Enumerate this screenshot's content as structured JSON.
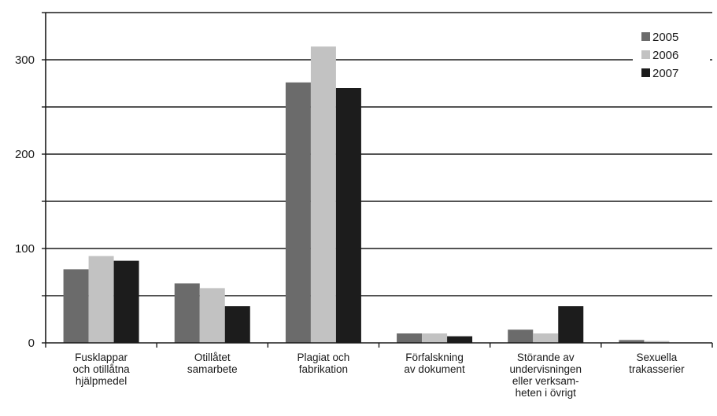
{
  "chart_data": {
    "type": "bar",
    "title": "",
    "xlabel": "",
    "ylabel": "",
    "ylim": [
      0,
      350
    ],
    "yticks": [
      0,
      100,
      200,
      300
    ],
    "grid": true,
    "legend_position": "top-right",
    "categories": [
      [
        "Fusklappar",
        "och otillåtna",
        "hjälpmedel"
      ],
      [
        "Otillåtet",
        "samarbete"
      ],
      [
        "Plagiat och",
        "fabrikation"
      ],
      [
        "Förfalskning",
        "av dokument"
      ],
      [
        "Störande av",
        "undervisningen",
        "eller verksam-",
        "heten i övrigt"
      ],
      [
        "Sexuella",
        "trakasserier"
      ]
    ],
    "series": [
      {
        "name": "2005",
        "color": "#6b6b6b",
        "values": [
          78,
          63,
          276,
          10,
          14,
          3
        ]
      },
      {
        "name": "2006",
        "color": "#c2c2c2",
        "values": [
          92,
          58,
          314,
          10,
          10,
          2
        ]
      },
      {
        "name": "2007",
        "color": "#1c1c1c",
        "values": [
          87,
          39,
          270,
          7,
          39,
          0
        ]
      }
    ]
  }
}
